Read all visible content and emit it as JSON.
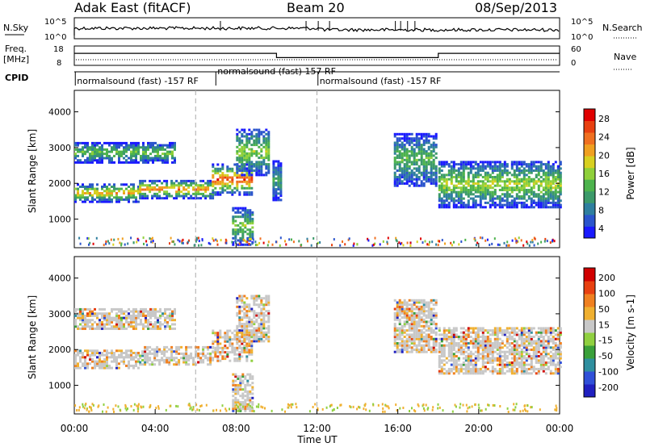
{
  "header": {
    "station": "Adak East (fitACF)",
    "beam": "Beam 20",
    "date": "08/Sep/2013"
  },
  "noise_panel": {
    "left_label": "N.Sky",
    "right_label": "N.Search",
    "ticks": [
      "10^5",
      "10^0"
    ]
  },
  "freq_panel": {
    "left_label_top": "Freq.",
    "left_label_bottom": "[MHz]",
    "right_label": "Nave",
    "left_ticks": [
      "18",
      "8"
    ],
    "right_ticks": [
      "60",
      "0"
    ],
    "steps": [
      {
        "t0": 0,
        "t1": 10,
        "level": 0.62
      },
      {
        "t0": 10,
        "t1": 18,
        "level": 0.4
      },
      {
        "t0": 18,
        "t1": 24,
        "level": 0.62
      }
    ]
  },
  "cpid": {
    "label": "CPID",
    "segments": [
      {
        "t": 0.05,
        "text": "normalsound (fast) -157 RF",
        "row": 1
      },
      {
        "t": 7.0,
        "text": "normalsound (fast) 157 RF",
        "row": 0
      },
      {
        "t": 12.05,
        "text": "normalsound (fast) -157 RF",
        "row": 1
      }
    ]
  },
  "chart_data": [
    {
      "type": "heatmap",
      "title": "Power",
      "ylabel": "Slant Range [km]",
      "xlabel": "Time UT",
      "ylim": [
        200,
        4600
      ],
      "yticks": [
        1000,
        2000,
        3000,
        4000
      ],
      "xlim": [
        0,
        24
      ],
      "xticks": [
        "00:00",
        "04:00",
        "08:00",
        "12:00",
        "16:00",
        "20:00",
        "00:00"
      ],
      "colorbar": {
        "label": "Power [dB]",
        "ticks": [
          "4",
          "8",
          "12",
          "16",
          "20",
          "24",
          "28"
        ],
        "colors": [
          "#1a1aff",
          "#2b55cc",
          "#2f7f9f",
          "#3c9a6a",
          "#4db34d",
          "#8fd03a",
          "#d8d020",
          "#f0a020",
          "#f07020",
          "#e84010",
          "#e00000"
        ]
      },
      "bands": [
        {
          "t0": 0,
          "t1": 3.2,
          "r0": 1450,
          "r1": 1950,
          "intensity": 0.7
        },
        {
          "t0": 3.2,
          "t1": 6.8,
          "r0": 1550,
          "r1": 2050,
          "intensity": 0.8
        },
        {
          "t0": 6.8,
          "t1": 8.8,
          "r0": 1650,
          "r1": 2500,
          "intensity": 0.9
        },
        {
          "t0": 0,
          "t1": 5.0,
          "r0": 2550,
          "r1": 3100,
          "intensity": 0.45
        },
        {
          "t0": 8.0,
          "t1": 9.6,
          "r0": 2200,
          "r1": 3500,
          "intensity": 0.5
        },
        {
          "t0": 9.8,
          "t1": 10.2,
          "r0": 1500,
          "r1": 2600,
          "intensity": 0.3
        },
        {
          "t0": 15.8,
          "t1": 17.9,
          "r0": 1900,
          "r1": 3400,
          "intensity": 0.4
        },
        {
          "t0": 18.0,
          "t1": 24,
          "r0": 1300,
          "r1": 2600,
          "intensity": 0.55
        },
        {
          "t0": 7.8,
          "t1": 8.8,
          "r0": 250,
          "r1": 1300,
          "intensity": 0.5
        }
      ]
    },
    {
      "type": "heatmap",
      "title": "Velocity",
      "ylabel": "Slant Range [km]",
      "xlabel": "Time UT",
      "ylim": [
        200,
        4600
      ],
      "yticks": [
        1000,
        2000,
        3000,
        4000
      ],
      "xlim": [
        0,
        24
      ],
      "xticks": [
        "00:00",
        "04:00",
        "08:00",
        "12:00",
        "16:00",
        "20:00",
        "00:00"
      ],
      "colorbar": {
        "label": "Velocity [m s-1]",
        "ticks": [
          "200",
          "100",
          "50",
          "15",
          "-15",
          "-50",
          "-100",
          "-200"
        ],
        "colors": [
          "#2020c0",
          "#3050d8",
          "#2f8f9f",
          "#3aa03a",
          "#90d040",
          "#c8c8c8",
          "#f0b030",
          "#f08020",
          "#e84010",
          "#d00000"
        ]
      },
      "bands": [
        {
          "t0": 0,
          "t1": 3.2,
          "r0": 1450,
          "r1": 1950,
          "intensity": 0.7
        },
        {
          "t0": 3.2,
          "t1": 6.8,
          "r0": 1550,
          "r1": 2050,
          "intensity": 0.8
        },
        {
          "t0": 6.8,
          "t1": 8.8,
          "r0": 1650,
          "r1": 2500,
          "intensity": 0.9
        },
        {
          "t0": 0,
          "t1": 5.0,
          "r0": 2550,
          "r1": 3100,
          "intensity": 0.45
        },
        {
          "t0": 8.0,
          "t1": 9.6,
          "r0": 2200,
          "r1": 3500,
          "intensity": 0.5
        },
        {
          "t0": 15.8,
          "t1": 17.9,
          "r0": 1900,
          "r1": 3400,
          "intensity": 0.4
        },
        {
          "t0": 18.0,
          "t1": 24,
          "r0": 1300,
          "r1": 2600,
          "intensity": 0.55
        },
        {
          "t0": 7.8,
          "t1": 8.8,
          "r0": 250,
          "r1": 1300,
          "intensity": 0.5
        }
      ]
    }
  ]
}
